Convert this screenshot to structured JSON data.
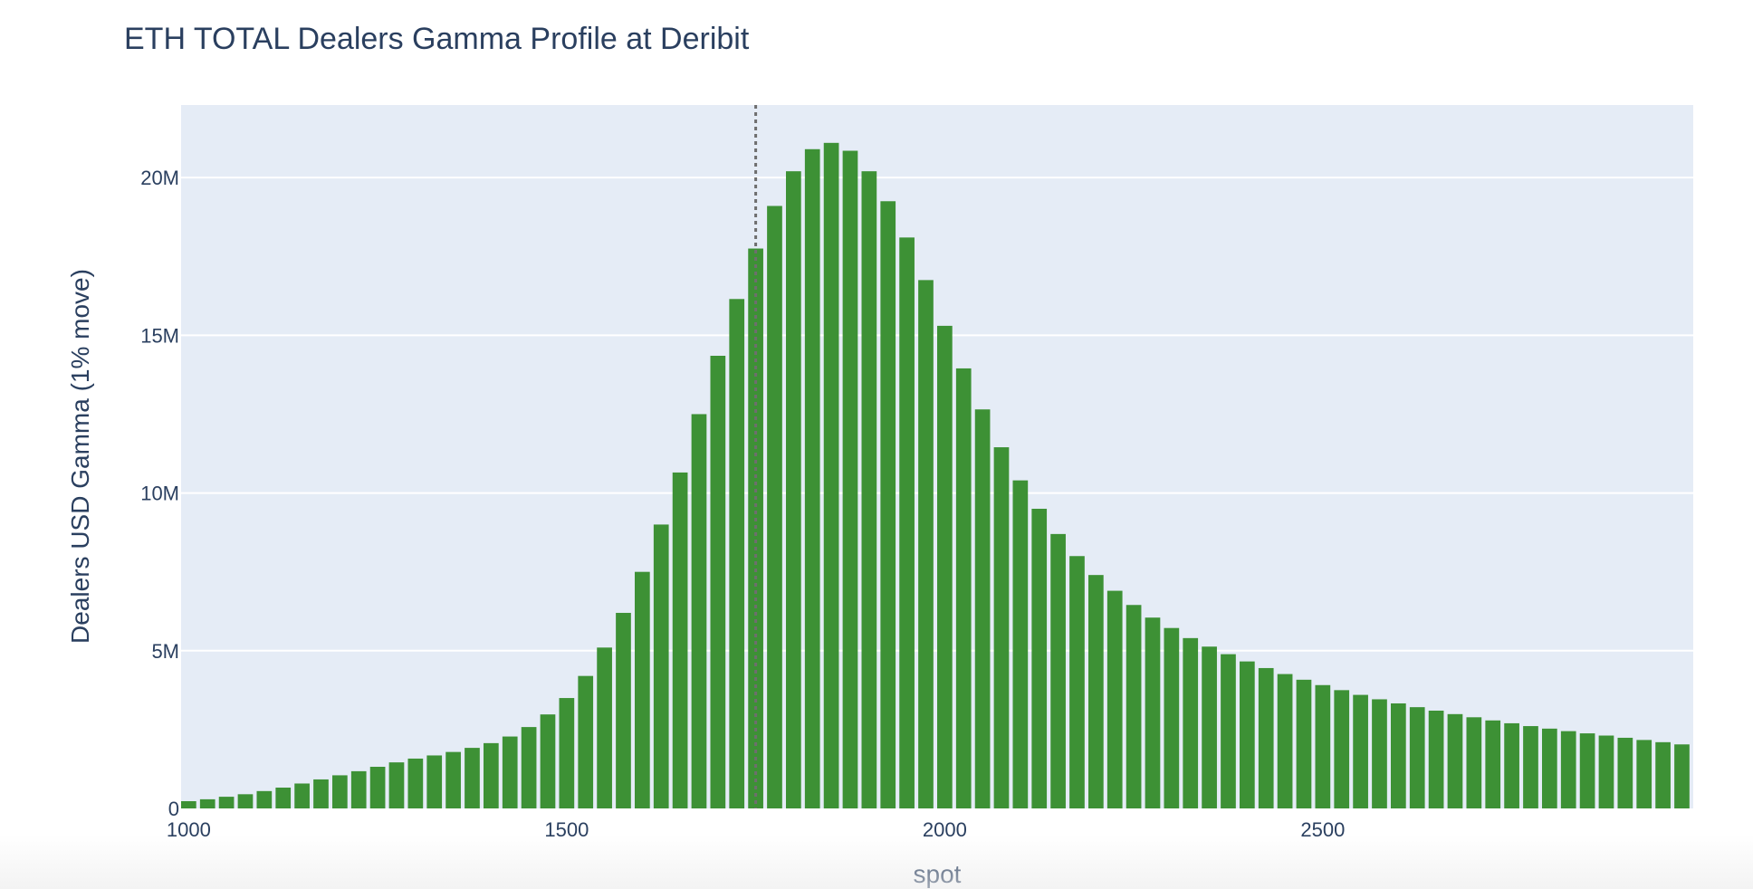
{
  "chart_data": {
    "type": "bar",
    "title": "ETH TOTAL Dealers Gamma Profile at Deribit",
    "xlabel": "spot",
    "ylabel": "Dealers USD Gamma (1% move)",
    "xlim": [
      990,
      2990
    ],
    "ylim": [
      0,
      22300000
    ],
    "x_ticks": [
      1000,
      1500,
      2000,
      2500
    ],
    "x_tick_labels": [
      "1000",
      "1500",
      "2000",
      "2500"
    ],
    "y_ticks": [
      0,
      5000000,
      10000000,
      15000000,
      20000000
    ],
    "y_tick_labels": [
      "0",
      "5M",
      "10M",
      "15M",
      "20M"
    ],
    "reference_line_x": 1750,
    "grid": true,
    "x": [
      1000,
      1025,
      1050,
      1075,
      1100,
      1125,
      1150,
      1175,
      1200,
      1225,
      1250,
      1275,
      1300,
      1325,
      1350,
      1375,
      1400,
      1425,
      1450,
      1475,
      1500,
      1525,
      1550,
      1575,
      1600,
      1625,
      1650,
      1675,
      1700,
      1725,
      1750,
      1775,
      1800,
      1825,
      1850,
      1875,
      1900,
      1925,
      1950,
      1975,
      2000,
      2025,
      2050,
      2075,
      2100,
      2125,
      2150,
      2175,
      2200,
      2225,
      2250,
      2275,
      2300,
      2325,
      2350,
      2375,
      2400,
      2425,
      2450,
      2475,
      2500,
      2525,
      2550,
      2575,
      2600,
      2625,
      2650,
      2675,
      2700,
      2725,
      2750,
      2775,
      2800,
      2825,
      2850,
      2875,
      2900,
      2925,
      2950,
      2975
    ],
    "values": [
      230000,
      290000,
      370000,
      450000,
      550000,
      660000,
      790000,
      920000,
      1050000,
      1180000,
      1320000,
      1460000,
      1580000,
      1680000,
      1790000,
      1920000,
      2070000,
      2280000,
      2580000,
      2980000,
      3500000,
      4200000,
      5100000,
      6200000,
      7500000,
      9000000,
      10650000,
      12500000,
      14350000,
      16150000,
      17750000,
      19100000,
      20200000,
      20900000,
      21100000,
      20850000,
      20200000,
      19250000,
      18100000,
      16750000,
      15300000,
      13950000,
      12650000,
      11450000,
      10400000,
      9500000,
      8700000,
      8000000,
      7400000,
      6900000,
      6450000,
      6050000,
      5720000,
      5400000,
      5130000,
      4890000,
      4660000,
      4450000,
      4260000,
      4080000,
      3910000,
      3750000,
      3600000,
      3460000,
      3330000,
      3210000,
      3100000,
      2990000,
      2890000,
      2790000,
      2700000,
      2610000,
      2530000,
      2450000,
      2380000,
      2310000,
      2240000,
      2170000,
      2100000,
      2030000
    ],
    "bar_color": "#3d9135",
    "ref_line_color": "#6e6e6e",
    "plot_bg": "#e5ecf6"
  }
}
